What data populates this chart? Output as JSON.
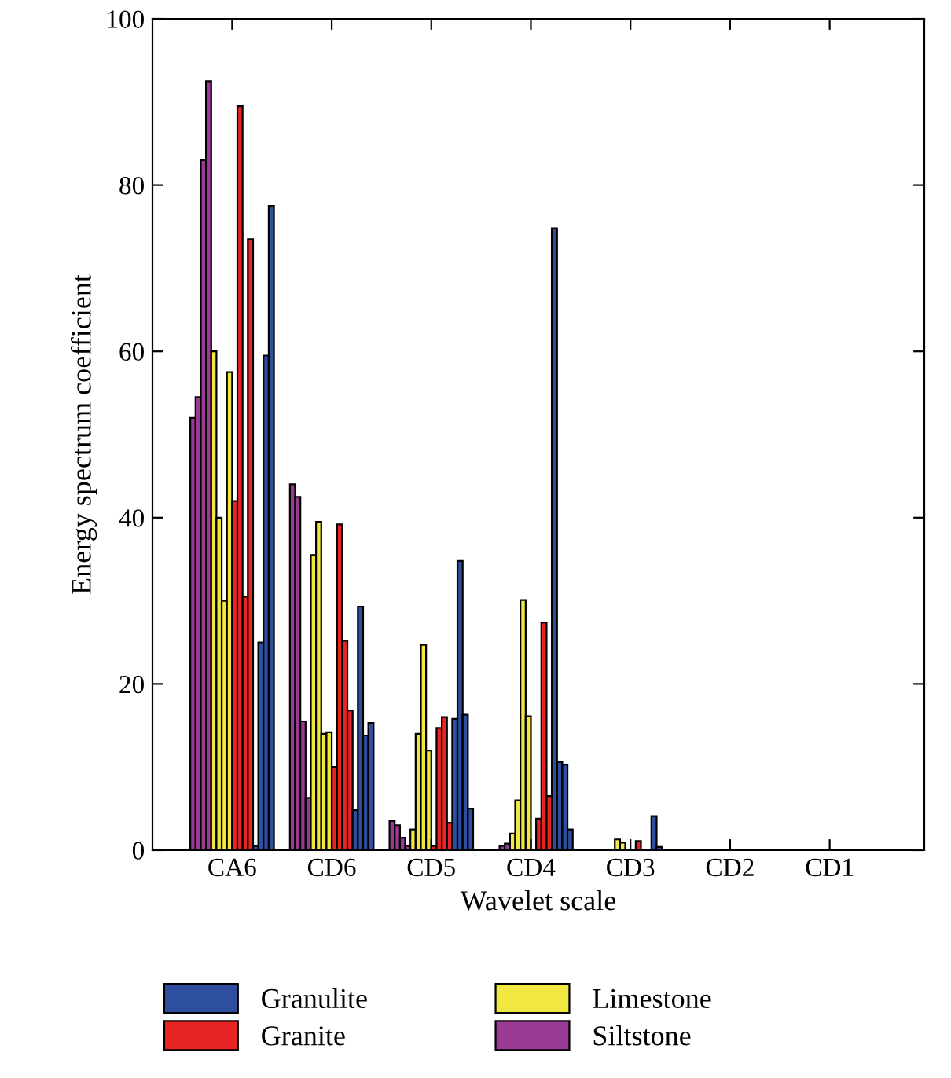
{
  "chart_data": {
    "type": "bar",
    "xlabel": "Wavelet scale",
    "ylabel": "Energy spectrum coefficient",
    "categories": [
      "CA6",
      "CD6",
      "CD5",
      "CD4",
      "CD3",
      "CD2",
      "CD1"
    ],
    "ylim": [
      0,
      100
    ],
    "yticks": [
      0,
      20,
      40,
      60,
      80,
      100
    ],
    "grid": false,
    "legend": "bottom",
    "series": [
      {
        "name": "Siltstone",
        "color": "#9a3a95",
        "values": [
          52,
          44,
          3.5,
          null,
          null,
          null,
          null
        ]
      },
      {
        "color": "#9a3a95",
        "values": [
          54.5,
          42.5,
          3,
          null,
          null,
          null,
          null
        ]
      },
      {
        "color": "#9a3a95",
        "values": [
          83,
          15.5,
          1.5,
          0.5,
          null,
          null,
          null
        ]
      },
      {
        "color": "#9a3a95",
        "values": [
          92.5,
          6.3,
          0.5,
          0.8,
          null,
          null,
          null
        ]
      },
      {
        "name": "Limestone",
        "color": "#f0e840",
        "values": [
          60,
          35.5,
          2.5,
          2,
          null,
          null,
          null
        ]
      },
      {
        "color": "#f0e840",
        "values": [
          40,
          39.5,
          14,
          6,
          1.3,
          null,
          null
        ]
      },
      {
        "color": "#f0e840",
        "values": [
          30,
          14,
          24.7,
          30.1,
          0.9,
          null,
          null
        ]
      },
      {
        "color": "#f0e840",
        "values": [
          57.5,
          14.2,
          12,
          16.1,
          null,
          null,
          null
        ]
      },
      {
        "name": "Granite",
        "color": "#e82424",
        "values": [
          42,
          10,
          0.5,
          null,
          null,
          null,
          null
        ]
      },
      {
        "color": "#e82424",
        "values": [
          89.5,
          39.2,
          14.7,
          3.8,
          1.1,
          null,
          null
        ]
      },
      {
        "color": "#e82424",
        "values": [
          30.5,
          25.2,
          16,
          27.4,
          null,
          null,
          null
        ]
      },
      {
        "color": "#e82424",
        "values": [
          73.5,
          16.8,
          3.3,
          6.5,
          null,
          null,
          null
        ]
      },
      {
        "name": "Granulite",
        "color": "#2e4fa0",
        "values": [
          0.5,
          4.8,
          15.8,
          74.8,
          4.1,
          null,
          null
        ]
      },
      {
        "color": "#2e4fa0",
        "values": [
          25,
          29.3,
          34.8,
          10.6,
          0.4,
          null,
          null
        ]
      },
      {
        "color": "#2e4fa0",
        "values": [
          59.5,
          13.8,
          16.3,
          10.3,
          null,
          null,
          null
        ]
      },
      {
        "color": "#2e4fa0",
        "values": [
          77.5,
          15.3,
          5,
          2.5,
          null,
          null,
          null
        ]
      }
    ]
  }
}
